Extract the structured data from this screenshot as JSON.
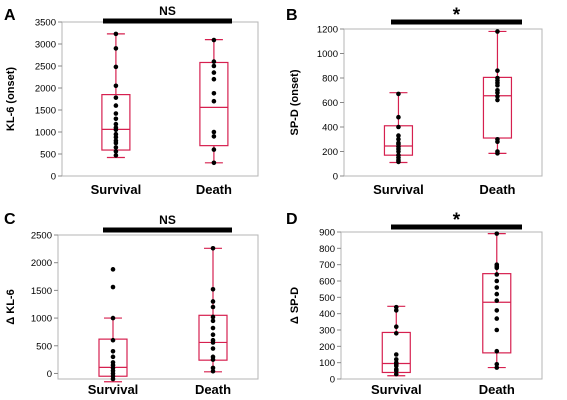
{
  "chart_data": [
    {
      "panel": "A",
      "type": "box",
      "ylabel": "KL-6 (onset)",
      "ylim": [
        0,
        3500
      ],
      "yticks": [
        0,
        500,
        1000,
        1500,
        2000,
        2500,
        3000,
        3500
      ],
      "categories": [
        "Survival",
        "Death"
      ],
      "significance": "NS",
      "boxes": [
        {
          "category": "Survival",
          "min": 420,
          "q1": 590,
          "median": 1060,
          "q3": 1850,
          "max": 3230,
          "points": [
            3230,
            2900,
            2480,
            2050,
            1780,
            1600,
            1420,
            1300,
            1180,
            1100,
            1050,
            950,
            880,
            800,
            750,
            650,
            560,
            470
          ]
        },
        {
          "category": "Death",
          "min": 300,
          "q1": 690,
          "median": 1560,
          "q3": 2580,
          "max": 3100,
          "points": [
            3090,
            2600,
            2500,
            2350,
            2200,
            1880,
            1700,
            1000,
            900,
            600,
            300
          ]
        }
      ]
    },
    {
      "panel": "B",
      "type": "box",
      "ylabel": "SP-D (onset)",
      "ylim": [
        0,
        1200
      ],
      "yticks": [
        0,
        200,
        400,
        600,
        800,
        1000,
        1200
      ],
      "categories": [
        "Survival",
        "Death"
      ],
      "significance": "*",
      "boxes": [
        {
          "category": "Survival",
          "min": 110,
          "q1": 170,
          "median": 245,
          "q3": 410,
          "max": 680,
          "points": [
            670,
            480,
            400,
            330,
            300,
            270,
            260,
            240,
            220,
            200,
            170,
            150,
            130,
            115
          ]
        },
        {
          "category": "Death",
          "min": 185,
          "q1": 310,
          "median": 655,
          "q3": 805,
          "max": 1180,
          "points": [
            1180,
            860,
            800,
            780,
            760,
            740,
            700,
            680,
            650,
            620,
            300,
            280,
            200,
            185
          ]
        }
      ]
    },
    {
      "panel": "C",
      "type": "box",
      "ylabel": "Δ KL-6",
      "ylim": [
        -100,
        2500
      ],
      "yticks": [
        0,
        500,
        1000,
        1500,
        2000,
        2500
      ],
      "categories": [
        "Survival",
        "Death"
      ],
      "significance": "NS",
      "boxes": [
        {
          "category": "Survival",
          "min": -150,
          "q1": -50,
          "median": 110,
          "q3": 620,
          "max": 1000,
          "points": [
            1880,
            1560,
            1000,
            600,
            400,
            300,
            200,
            150,
            100,
            50,
            0,
            -50,
            -100
          ]
        },
        {
          "category": "Death",
          "min": 30,
          "q1": 240,
          "median": 560,
          "q3": 1050,
          "max": 2260,
          "points": [
            2260,
            1520,
            1300,
            1200,
            1020,
            950,
            820,
            700,
            600,
            560,
            450,
            300,
            250,
            100,
            40
          ]
        }
      ]
    },
    {
      "panel": "D",
      "type": "box",
      "ylabel": "Δ SP-D",
      "ylim": [
        0,
        900
      ],
      "yticks": [
        0,
        100,
        200,
        300,
        400,
        500,
        600,
        700,
        800,
        900
      ],
      "categories": [
        "Survival",
        "Death"
      ],
      "significance": "*",
      "boxes": [
        {
          "category": "Survival",
          "min": 20,
          "q1": 40,
          "median": 95,
          "q3": 285,
          "max": 445,
          "points": [
            440,
            420,
            320,
            280,
            150,
            120,
            100,
            90,
            80,
            60,
            50,
            30
          ]
        },
        {
          "category": "Death",
          "min": 70,
          "q1": 160,
          "median": 470,
          "q3": 645,
          "max": 890,
          "points": [
            890,
            700,
            690,
            680,
            640,
            600,
            560,
            520,
            480,
            420,
            370,
            300,
            170,
            90,
            70
          ]
        }
      ]
    }
  ]
}
